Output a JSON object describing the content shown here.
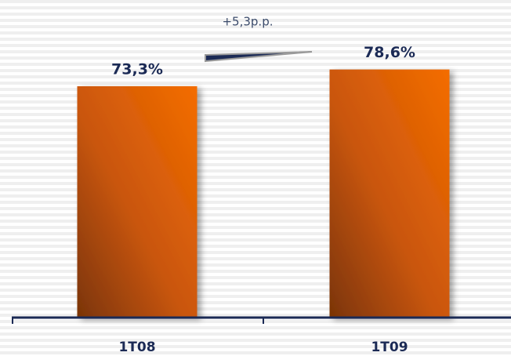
{
  "chart_data": {
    "type": "bar",
    "categories": [
      "1T08",
      "1T09"
    ],
    "values": [
      73.3,
      78.6
    ],
    "value_labels": [
      "73,3%",
      "78,6%"
    ],
    "annotation": "+5,3p.p.",
    "color": "#e86a10"
  }
}
